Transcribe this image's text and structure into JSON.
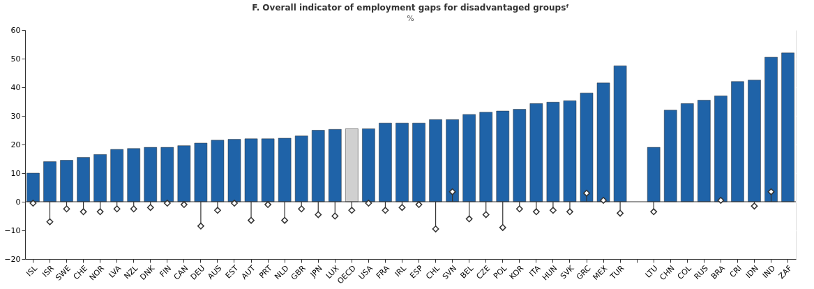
{
  "chart_data": {
    "type": "bar",
    "title": "F. Overall indicator of employment gaps for disadvantaged groupsᶠ",
    "ylabel": "%",
    "categories": [
      "ISL",
      "ISR",
      "SWE",
      "CHE",
      "NOR",
      "LVA",
      "NZL",
      "DNK",
      "FIN",
      "CAN",
      "DEU",
      "AUS",
      "EST",
      "AUT",
      "PRT",
      "NLD",
      "GBR",
      "JPN",
      "LUX",
      "OECD",
      "USA",
      "FRA",
      "IRL",
      "ESP",
      "CHL",
      "SVN",
      "BEL",
      "CZE",
      "POL",
      "KOR",
      "ITA",
      "HUN",
      "SVK",
      "GRC",
      "MEX",
      "TUR",
      null,
      "LTU",
      "CHN",
      "COL",
      "RUS",
      "BRA",
      "CRI",
      "IDN",
      "IND",
      "ZAF"
    ],
    "series": [
      {
        "colors": [
          "#1f63a8",
          "#1f63a8",
          "#1f63a8",
          "#1f63a8",
          "#1f63a8",
          "#1f63a8",
          "#1f63a8",
          "#1f63a8",
          "#1f63a8",
          "#1f63a8",
          "#1f63a8",
          "#1f63a8",
          "#1f63a8",
          "#1f63a8",
          "#1f63a8",
          "#1f63a8",
          "#1f63a8",
          "#1f63a8",
          "#1f63a8",
          "#d0d0d0",
          "#1f63a8",
          "#1f63a8",
          "#1f63a8",
          "#1f63a8",
          "#1f63a8",
          "#1f63a8",
          "#1f63a8",
          "#1f63a8",
          "#1f63a8",
          "#1f63a8",
          "#1f63a8",
          "#1f63a8",
          "#1f63a8",
          "#1f63a8",
          "#1f63a8",
          "#1f63a8",
          "#1f63a8",
          "#1f63a8",
          "#1f63a8",
          "#1f63a8",
          "#1f63a8",
          "#1f63a8",
          "#1f63a8",
          "#1f63a8",
          "#1f63a8",
          "#1f63a8"
        ],
        "values": [
          10,
          14,
          14.5,
          15.5,
          16.5,
          18.3,
          18.6,
          19,
          19,
          19.6,
          20.5,
          21.5,
          21.8,
          22,
          22,
          22.2,
          23,
          25,
          25.3,
          25.5,
          25.5,
          27.5,
          27.5,
          27.5,
          28.7,
          28.7,
          30.5,
          31.3,
          31.7,
          32.3,
          34.3,
          34.8,
          35.3,
          38,
          41.5,
          47.5,
          null,
          19,
          32,
          34.3,
          35.5,
          37,
          42,
          42.5,
          50.5,
          52
        ]
      },
      {
        "type": "lollipop",
        "color": "#333333",
        "marker": "diamond",
        "values": [
          -0.5,
          -7,
          -2.5,
          -3.5,
          -3.5,
          -2.5,
          -2.5,
          -2,
          -0.5,
          -1,
          -8.5,
          -3,
          -0.5,
          -6.5,
          -1,
          -6.5,
          -2.5,
          -4.5,
          -5,
          -3,
          -0.5,
          -3,
          -2,
          -1,
          -9.5,
          3.5,
          -6,
          -4.5,
          -9,
          -2.5,
          -3.5,
          -3,
          -3.5,
          3,
          0.5,
          -4,
          null,
          -3.5,
          null,
          null,
          null,
          0.5,
          null,
          -1.5,
          3.5,
          null
        ]
      }
    ],
    "ylim": [
      -20,
      60
    ],
    "yticks": [
      -20,
      -10,
      0,
      10,
      20,
      30,
      40,
      50,
      60
    ],
    "grid": true
  }
}
